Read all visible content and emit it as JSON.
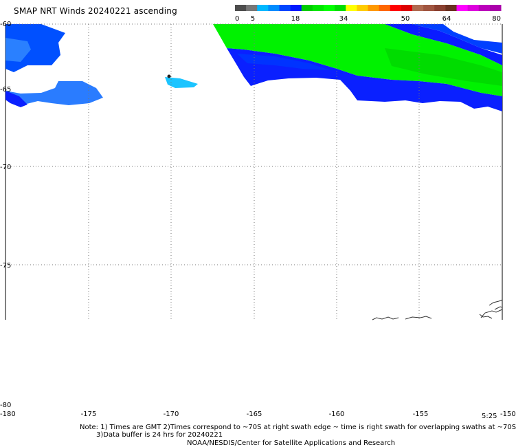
{
  "title": "SMAP NRT Winds 20240221 ascending",
  "colorbar": {
    "ticks": [
      "0",
      "5",
      "18",
      "34",
      "50",
      "64",
      "80"
    ],
    "colors": [
      "#4d4d4d",
      "#777777",
      "#00b8ff",
      "#008cff",
      "#0046ff",
      "#0018ff",
      "#00cc00",
      "#00e600",
      "#00ff00",
      "#00dd00",
      "#ffff00",
      "#ffcc00",
      "#ff9900",
      "#ff6600",
      "#ff0000",
      "#dd0000",
      "#b06a50",
      "#a05540",
      "#8a4030",
      "#6a3020",
      "#ff00ff",
      "#dd00dd",
      "#bb00bb",
      "#aa00aa"
    ]
  },
  "map": {
    "lon_labels": [
      "-180",
      "-175",
      "-170",
      "-165",
      "-160",
      "-155",
      "-150"
    ],
    "lat_labels": [
      "-60",
      "-65",
      "-70",
      "-75",
      "-80"
    ],
    "time_label": "5:25",
    "colors": {
      "deep_blue": "#0a1aff",
      "medium_blue": "#0044ff",
      "bright_blue": "#1a78ff",
      "cyan": "#18c8ff",
      "green": "#00f000",
      "dark_green": "#00c800",
      "grid": "#7f7f7f",
      "coast": "#333333"
    }
  },
  "notes": {
    "line1": "Note: 1) Times are GMT 2)Times correspond to ~70S at right swath edge ~ time is right swath for overlapping swaths at ~70S",
    "line2": "3)Data buffer is 24 hrs for 20240221",
    "line3": "NOAA/NESDIS/Center for Satellite Applications and Research"
  }
}
